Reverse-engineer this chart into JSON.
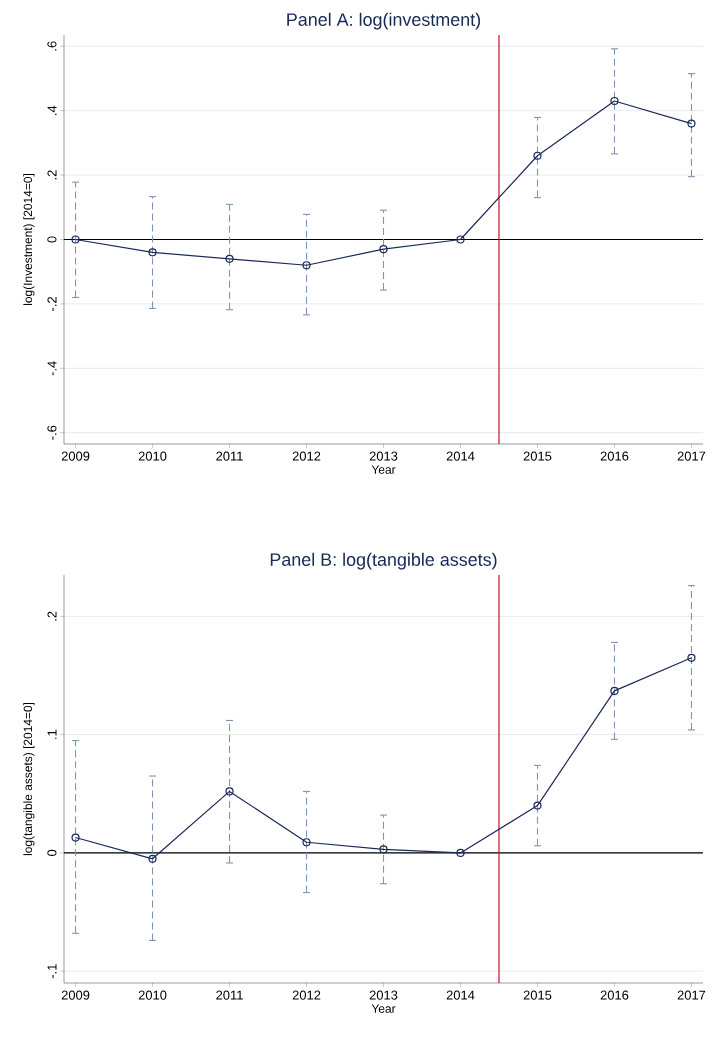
{
  "chart_data": [
    {
      "type": "line",
      "title": "Panel A: log(investment)",
      "xlabel": "Year",
      "ylabel": "log(Investment) [2014=0]",
      "x": [
        2009,
        2010,
        2011,
        2012,
        2013,
        2014,
        2015,
        2016,
        2017
      ],
      "series": [
        {
          "color": "#1a2a56",
          "values": [
            0,
            -0.04,
            -0.06,
            -0.08,
            -0.03,
            0,
            0.26,
            0.43,
            0.36
          ],
          "errors": [
            [
              -0.18,
              0.178
            ],
            [
              -0.214,
              0.133
            ],
            [
              -0.218,
              0.109
            ],
            [
              -0.234,
              0.078
            ],
            [
              -0.157,
              0.091
            ],
            null,
            [
              0.13,
              0.379
            ],
            [
              0.266,
              0.592
            ],
            [
              0.195,
              0.515
            ]
          ]
        }
      ],
      "xlim": [
        2008.85,
        2017.15
      ],
      "ylim": [
        -0.635,
        0.635
      ],
      "xticks": [
        2009,
        2010,
        2011,
        2012,
        2013,
        2014,
        2015,
        2016,
        2017
      ],
      "yticks": [
        {
          "value": -0.6,
          "label": "-.6"
        },
        {
          "value": -0.4,
          "label": "-.4"
        },
        {
          "value": -0.2,
          "label": "-.2"
        },
        0,
        {
          "value": 0.2,
          "label": ".2"
        },
        {
          "value": 0.4,
          "label": ".4"
        },
        {
          "value": 0.6,
          "label": ".6"
        }
      ],
      "grid": "y",
      "marker": "circle",
      "line_style": "solid",
      "ref_lines": [
        {
          "axis": "y",
          "value": 0,
          "color": "#000000"
        },
        {
          "axis": "x",
          "value": 2014.5,
          "color": "#c8102e"
        }
      ]
    },
    {
      "type": "line",
      "title": "Panel B: log(tangible assets)",
      "xlabel": "Year",
      "ylabel": "log(tangible assets) [2014=0]",
      "x": [
        2009,
        2010,
        2011,
        2012,
        2013,
        2014,
        2015,
        2016,
        2017
      ],
      "series": [
        {
          "color": "#1a2a56",
          "values": [
            0.013,
            -0.005,
            0.052,
            0.009,
            0.003,
            0,
            0.04,
            0.137,
            0.165
          ],
          "errors": [
            [
              -0.068,
              0.095
            ],
            [
              -0.074,
              0.065
            ],
            [
              -0.0085,
              0.112
            ],
            [
              -0.0335,
              0.052
            ],
            [
              -0.026,
              0.032
            ],
            null,
            [
              0.006,
              0.074
            ],
            [
              0.096,
              0.178
            ],
            [
              0.104,
              0.226
            ]
          ]
        }
      ],
      "xlim": [
        2008.85,
        2017.15
      ],
      "ylim": [
        -0.11,
        0.235
      ],
      "xticks": [
        2009,
        2010,
        2011,
        2012,
        2013,
        2014,
        2015,
        2016,
        2017
      ],
      "yticks": [
        {
          "value": -0.1,
          "label": "-.1"
        },
        0,
        {
          "value": 0.1,
          "label": ".1"
        },
        {
          "value": 0.2,
          "label": ".2"
        }
      ],
      "grid": "y",
      "marker": "circle",
      "line_style": "solid",
      "ref_lines": [
        {
          "axis": "y",
          "value": 0,
          "color": "#000000"
        },
        {
          "axis": "x",
          "value": 2014.5,
          "color": "#c8102e"
        }
      ]
    }
  ]
}
